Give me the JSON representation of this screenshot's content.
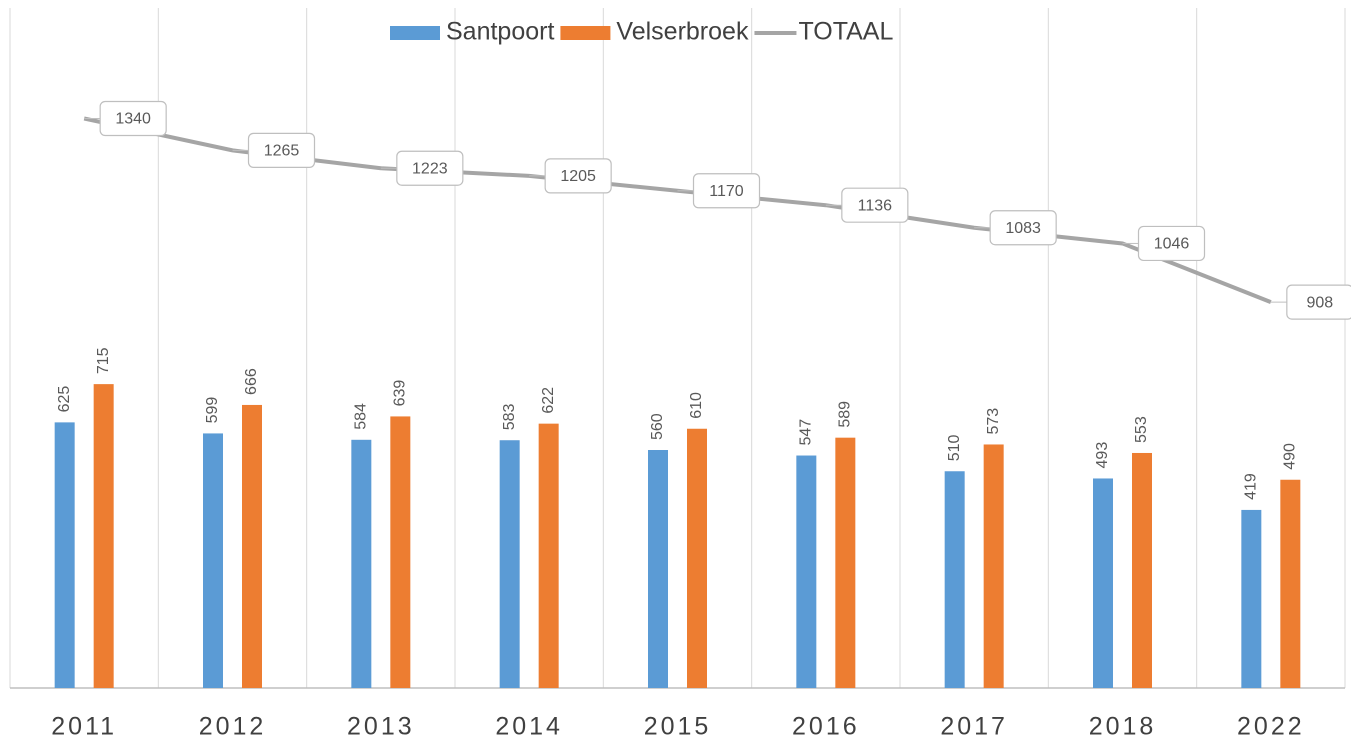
{
  "chart_data": {
    "type": "bar",
    "categories": [
      "2011",
      "2012",
      "2013",
      "2014",
      "2015",
      "2016",
      "2017",
      "2018",
      "2022"
    ],
    "series": [
      {
        "name": "Santpoort",
        "color": "#5b9bd5",
        "values": [
          625,
          599,
          584,
          583,
          560,
          547,
          510,
          493,
          419
        ]
      },
      {
        "name": "Velserbroek",
        "color": "#ed7d31",
        "values": [
          715,
          666,
          639,
          622,
          610,
          589,
          573,
          553,
          490
        ]
      },
      {
        "name": "TOTAAL",
        "color": "#a5a5a5",
        "type": "line",
        "values": [
          1340,
          1265,
          1223,
          1205,
          1170,
          1136,
          1083,
          1046,
          908
        ]
      }
    ],
    "ylim": [
      0,
      1600
    ],
    "legend": "top"
  }
}
